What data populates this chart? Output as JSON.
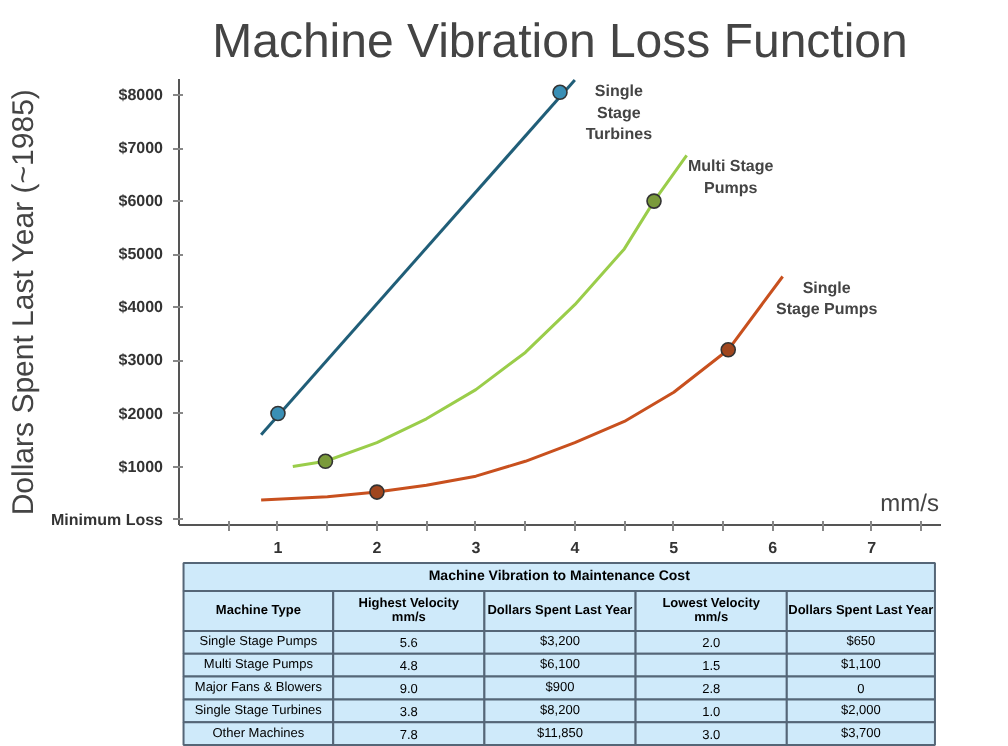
{
  "chart_data": {
    "type": "line",
    "title": "Machine Vibration Loss Function",
    "xlabel": "mm/s",
    "ylabel": "Dollars Spent Last Year (~1985)",
    "xlim": [
      0,
      7.7
    ],
    "ylim": [
      -100,
      8300
    ],
    "xticks": [
      {
        "value": 0.5,
        "label": null
      },
      1,
      {
        "value": 1.5,
        "label": null
      },
      2,
      {
        "value": 2.5,
        "label": null
      },
      3,
      {
        "value": 3.5,
        "label": null
      },
      4,
      {
        "value": 4.5,
        "label": null
      },
      5,
      {
        "value": 5.5,
        "label": null
      },
      6,
      {
        "value": 6.5,
        "label": null
      },
      7,
      {
        "value": 7.5,
        "label": null
      }
    ],
    "yticks": [
      {
        "value": 0,
        "label": "Minimum Loss"
      },
      {
        "value": 1000,
        "label": "$1000"
      },
      {
        "value": 2000,
        "label": "$2000"
      },
      {
        "value": 3000,
        "label": "$3000"
      },
      {
        "value": 4000,
        "label": "$4000"
      },
      {
        "value": 5000,
        "label": "$5000"
      },
      {
        "value": 6000,
        "label": "$6000"
      },
      {
        "value": 7000,
        "label": "$7000"
      },
      {
        "value": 8000,
        "label": "$8000"
      }
    ],
    "series": [
      {
        "name": "Single Stage Turbines",
        "color": "#205e78",
        "x": [
          0.83,
          4.0
        ],
        "values": [
          1600,
          8280
        ]
      },
      {
        "type": "scatter",
        "color": "#3a8fb5",
        "x": [
          1,
          3.85
        ],
        "values": [
          2000,
          8050
        ]
      },
      {
        "name": "Multi Stage Pumps",
        "color": "#9acd4a",
        "x": [
          1.15,
          1.48,
          2.0,
          2.5,
          3.0,
          3.5,
          4.0,
          4.5,
          4.8,
          5.13
        ],
        "values": [
          1000,
          1100,
          1450,
          1900,
          2450,
          3150,
          4050,
          5100,
          6000,
          6860
        ]
      },
      {
        "type": "scatter",
        "color": "#7a9a3a",
        "x": [
          1.48,
          4.8
        ],
        "values": [
          1100,
          6000
        ]
      },
      {
        "name": "Single Stage Pumps",
        "color": "#c8501e",
        "x": [
          0.83,
          1.5,
          2.0,
          2.5,
          3.0,
          3.5,
          4.0,
          4.5,
          5.0,
          5.55,
          6.1
        ],
        "values": [
          370,
          430,
          520,
          650,
          820,
          1100,
          1450,
          1850,
          2400,
          3200,
          4580
        ]
      },
      {
        "type": "scatter",
        "color": "#a0461e",
        "x": [
          2.0,
          5.55
        ],
        "values": [
          520,
          3200
        ]
      }
    ],
    "annotations": [
      "Machine Vibration to Maintenance Cost",
      "Machine Type",
      "Highest Velocity\nmm/s",
      "Dollars Spent Last Year",
      "Lowest Velocity\nmm/s",
      "Dollars Spent Last Year",
      "Single Stage Pumps",
      "5.6",
      "$3,200",
      "2.0",
      "$650",
      "Multi Stage Pumps",
      "4.8",
      "$6,100",
      "1.5",
      "$1,100",
      "Major Fans & Blowers",
      "9.0",
      "$900",
      "2.8",
      "0",
      "Single Stage Turbines",
      "3.8",
      "$8,200",
      "1.0",
      "$2,000",
      "Other Machines",
      "7.8",
      "$11,850",
      "3.0",
      "$3,700"
    ]
  }
}
